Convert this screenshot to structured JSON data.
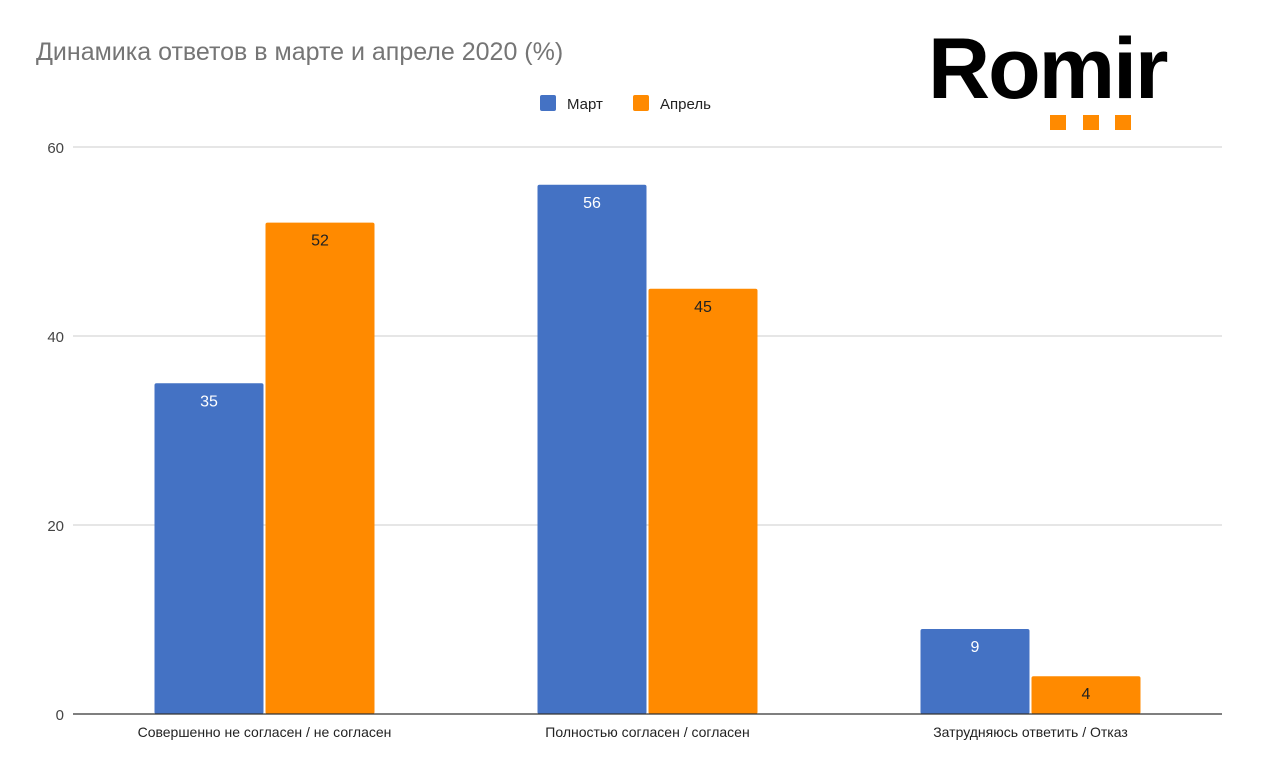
{
  "chart_data": {
    "type": "bar",
    "title": "Динамика ответов в марте и апреле 2020 (%)",
    "categories": [
      "Совершенно не согласен / не согласен",
      "Полностью согласен / согласен",
      "Затрудняюсь ответить / Отказ"
    ],
    "series": [
      {
        "name": "Март",
        "color": "#4472c4",
        "label_color": "#ffffff",
        "values": [
          35,
          56,
          9
        ]
      },
      {
        "name": "Апрель",
        "color": "#ff8a00",
        "label_color": "#222222",
        "values": [
          52,
          45,
          4
        ]
      }
    ],
    "xlabel": "",
    "ylabel": "",
    "ylim": [
      0,
      60
    ],
    "yticks": [
      0,
      20,
      40,
      60
    ],
    "grid": true,
    "legend": "top-center"
  },
  "logo": {
    "text": "Romir"
  }
}
